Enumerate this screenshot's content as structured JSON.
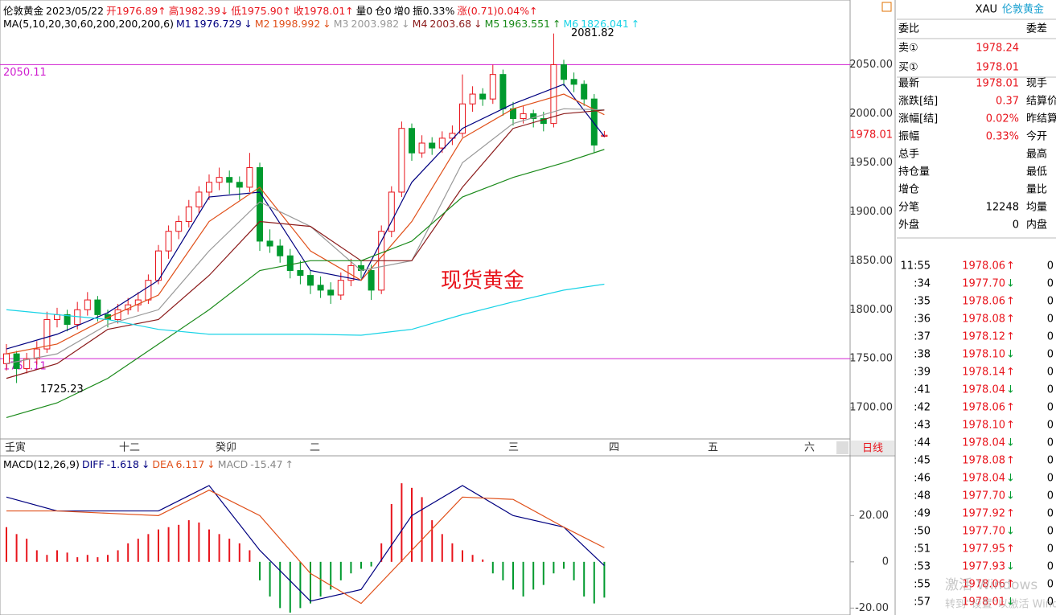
{
  "header": {
    "symbol": "伦敦黄金",
    "date": "2023/05/22",
    "items": [
      "开1976.89↑",
      "高1982.39↓",
      "低1975.90↑",
      "收1978.01↑",
      "量0",
      "仓0",
      "增0",
      "振0.33%",
      "涨(0.71)0.04%↑"
    ]
  },
  "chart_data": [
    {
      "type": "candlestick",
      "ma_title": "MA(5,10,20,30,60,200,200,200,6)",
      "up_color": "#e8141c",
      "down_color": "#009a2e",
      "candles": [
        [
          1745,
          1765,
          1738,
          1755
        ],
        [
          1755,
          1758,
          1725.23,
          1740
        ],
        [
          1740,
          1756,
          1735,
          1750
        ],
        [
          1750,
          1768,
          1744,
          1760
        ],
        [
          1760,
          1798,
          1756,
          1790
        ],
        [
          1790,
          1802,
          1782,
          1795
        ],
        [
          1795,
          1800,
          1778,
          1785
        ],
        [
          1785,
          1808,
          1780,
          1800
        ],
        [
          1800,
          1818,
          1794,
          1810
        ],
        [
          1810,
          1814,
          1788,
          1795
        ],
        [
          1795,
          1800,
          1782,
          1790
        ],
        [
          1790,
          1806,
          1786,
          1800
        ],
        [
          1800,
          1812,
          1795,
          1805
        ],
        [
          1805,
          1818,
          1798,
          1810
        ],
        [
          1810,
          1836,
          1806,
          1830
        ],
        [
          1830,
          1866,
          1826,
          1860
        ],
        [
          1860,
          1886,
          1852,
          1880
        ],
        [
          1880,
          1896,
          1872,
          1890
        ],
        [
          1890,
          1912,
          1884,
          1905
        ],
        [
          1905,
          1926,
          1898,
          1920
        ],
        [
          1920,
          1938,
          1912,
          1930
        ],
        [
          1930,
          1945,
          1922,
          1935
        ],
        [
          1935,
          1942,
          1918,
          1930
        ],
        [
          1930,
          1936,
          1912,
          1925
        ],
        [
          1925,
          1960,
          1920,
          1945
        ],
        [
          1945,
          1950,
          1860,
          1870
        ],
        [
          1870,
          1882,
          1858,
          1865
        ],
        [
          1865,
          1872,
          1848,
          1855
        ],
        [
          1855,
          1862,
          1832,
          1840
        ],
        [
          1840,
          1850,
          1826,
          1835
        ],
        [
          1835,
          1840,
          1816,
          1825
        ],
        [
          1825,
          1834,
          1812,
          1820
        ],
        [
          1820,
          1828,
          1806,
          1815
        ],
        [
          1815,
          1838,
          1810,
          1830
        ],
        [
          1830,
          1852,
          1824,
          1845
        ],
        [
          1845,
          1850,
          1832,
          1840
        ],
        [
          1840,
          1846,
          1810,
          1820
        ],
        [
          1820,
          1886,
          1816,
          1880
        ],
        [
          1880,
          1926,
          1874,
          1920
        ],
        [
          1920,
          1992,
          1915,
          1985
        ],
        [
          1985,
          1990,
          1952,
          1960
        ],
        [
          1960,
          1978,
          1955,
          1970
        ],
        [
          1970,
          1976,
          1958,
          1965
        ],
        [
          1965,
          1982,
          1960,
          1975
        ],
        [
          1975,
          1988,
          1968,
          1980
        ],
        [
          1980,
          2040,
          1976,
          2010
        ],
        [
          2010,
          2028,
          2002,
          2020
        ],
        [
          2020,
          2026,
          2008,
          2015
        ],
        [
          2015,
          2050,
          2010,
          2040
        ],
        [
          2040,
          2045,
          1998,
          2005
        ],
        [
          2005,
          2012,
          1988,
          1995
        ],
        [
          1995,
          2008,
          1990,
          2000
        ],
        [
          2000,
          2004,
          1986,
          1995
        ],
        [
          1995,
          2002,
          1982,
          1990
        ],
        [
          1990,
          2081.82,
          1986,
          2050
        ],
        [
          2050,
          2055,
          2028,
          2035
        ],
        [
          2035,
          2042,
          2022,
          2030
        ],
        [
          2030,
          2034,
          2008,
          2015
        ],
        [
          2015,
          2020,
          1960,
          1968
        ],
        [
          1976.89,
          1982.39,
          1975.9,
          1978.01
        ]
      ],
      "x": [
        0,
        5,
        10,
        15,
        20,
        25,
        30,
        35,
        40,
        45,
        50,
        55,
        59
      ],
      "series": [
        {
          "name": "M1",
          "color": "#000080",
          "trend": "↓",
          "values": [
            1760,
            1775,
            1797,
            1830,
            1915,
            1920,
            1840,
            1830,
            1930,
            1985,
            2010,
            2030,
            1976.729
          ]
        },
        {
          "name": "M2",
          "color": "#e0501a",
          "trend": "↓",
          "values": [
            1755,
            1765,
            1792,
            1815,
            1890,
            1925,
            1860,
            1830,
            1890,
            1975,
            2005,
            2020,
            1998.992
          ]
        },
        {
          "name": "M3",
          "color": "#999999",
          "trend": "↓",
          "values": [
            1745,
            1755,
            1785,
            1800,
            1860,
            1910,
            1885,
            1840,
            1850,
            1950,
            1990,
            2005,
            2003.982
          ]
        },
        {
          "name": "M4",
          "color": "#8b1a1a",
          "trend": "↓",
          "values": [
            1730,
            1745,
            1780,
            1790,
            1835,
            1890,
            1885,
            1850,
            1850,
            1925,
            1985,
            2000,
            2003.68
          ]
        },
        {
          "name": "M5",
          "color": "#1a8a1a",
          "trend": "↑",
          "values": [
            1690,
            1705,
            1730,
            1765,
            1800,
            1840,
            1850,
            1850,
            1870,
            1915,
            1935,
            1950,
            1963.551
          ]
        },
        {
          "name": "M6",
          "color": "#19d3e6",
          "trend": "↑",
          "values": [
            1800,
            1795,
            1790,
            1780,
            1775,
            1775,
            1775,
            1774,
            1780,
            1795,
            1808,
            1820,
            1826.041
          ]
        }
      ],
      "ylim": [
        1669,
        2116
      ],
      "yticks": [
        {
          "value": 2050,
          "label": "2050.00"
        },
        {
          "value": 2000,
          "label": "2000.00"
        },
        {
          "value": 1950,
          "label": "1950.00"
        },
        {
          "value": 1900,
          "label": "1900.00"
        },
        {
          "value": 1850,
          "label": "1850.00"
        },
        {
          "value": 1800,
          "label": "1800.00"
        },
        {
          "value": 1750,
          "label": "1750.00"
        },
        {
          "value": 1700,
          "label": "1700.00"
        }
      ],
      "hlines": [
        2050.11,
        1750.11
      ],
      "hline_color": "#d020d0",
      "annotations": [
        2081.82,
        1725.23
      ],
      "current": 1978.01,
      "label": "现货黄金",
      "time_labels": [
        "壬寅",
        "十二",
        "癸卯",
        "二",
        "三",
        "四",
        "五",
        "六"
      ],
      "period": "日线"
    },
    {
      "type": "macd",
      "title": "MACD(12,26,9)",
      "histogram": {
        "name": "MACD",
        "trend": "↑",
        "values": [
          15,
          12,
          10,
          5,
          3,
          5,
          4,
          2,
          3,
          2,
          3,
          5,
          8,
          10,
          12,
          14,
          15,
          16,
          18,
          17,
          14,
          12,
          10,
          8,
          5,
          -8,
          -15,
          -20,
          -22,
          -20,
          -18,
          -15,
          -12,
          -8,
          -5,
          -3,
          -2,
          8,
          25,
          34,
          32,
          28,
          18,
          12,
          8,
          5,
          3,
          1,
          -5,
          -8,
          -12,
          -15,
          -12,
          -10,
          -5,
          -3,
          -8,
          -15,
          -18,
          -15.47
        ]
      },
      "x": [
        0,
        5,
        10,
        15,
        20,
        25,
        30,
        35,
        40,
        45,
        50,
        55,
        59
      ],
      "series": [
        {
          "name": "DIFF",
          "color": "#000080",
          "trend": "↓",
          "values": [
            28,
            22,
            22,
            22,
            33,
            5,
            -17,
            -12,
            20,
            33,
            20,
            15,
            -1.618
          ]
        },
        {
          "name": "DEA",
          "color": "#e0501a",
          "trend": "↓",
          "values": [
            22,
            22,
            21,
            20,
            31,
            20,
            -5,
            -18,
            5,
            28,
            27,
            15,
            6.117
          ]
        }
      ],
      "ylim": [
        -23,
        45.5
      ],
      "yticks": [
        {
          "value": 20,
          "label": "20.00"
        },
        0,
        {
          "value": -20,
          "label": "-20.00"
        }
      ]
    }
  ],
  "quote_panel": {
    "code": "XAU",
    "name": "伦敦黄金",
    "rows": [
      {
        "label": "委比",
        "label2": "委差"
      },
      {
        "label": "卖①",
        "value": "1978.24"
      },
      {
        "label": "买①",
        "value": "1978.01"
      },
      {
        "label": "最新",
        "value": "1978.01",
        "label2": "现手"
      },
      {
        "label": "涨跌[结]",
        "value": "0.37",
        "label2": "结算价"
      },
      {
        "label": "涨幅[结]",
        "value": "0.02%",
        "label2": "昨结算"
      },
      {
        "label": "振幅",
        "value": "0.33%",
        "label2": "今开"
      },
      {
        "label": "总手",
        "label2": "最高"
      },
      {
        "label": "持仓量",
        "label2": "最低"
      },
      {
        "label": "增仓",
        "label2": "量比"
      },
      {
        "label": "分笔",
        "value": "12248",
        "label2": "均量"
      },
      {
        "label": "外盘",
        "value": "0",
        "label2": "内盘"
      }
    ]
  },
  "ticks": [
    {
      "time": "11:55",
      "price": "1978.06",
      "dir": "↑",
      "vol": "0"
    },
    {
      "time": ":34",
      "price": "1977.70",
      "dir": "↓",
      "vol": "0"
    },
    {
      "time": ":35",
      "price": "1978.06",
      "dir": "↑",
      "vol": "0"
    },
    {
      "time": ":36",
      "price": "1978.08",
      "dir": "↑",
      "vol": "0"
    },
    {
      "time": ":37",
      "price": "1978.12",
      "dir": "↑",
      "vol": "0"
    },
    {
      "time": ":38",
      "price": "1978.10",
      "dir": "↓",
      "vol": "0"
    },
    {
      "time": ":39",
      "price": "1978.14",
      "dir": "↑",
      "vol": "0"
    },
    {
      "time": ":41",
      "price": "1978.04",
      "dir": "↓",
      "vol": "0"
    },
    {
      "time": ":42",
      "price": "1978.06",
      "dir": "↑",
      "vol": "0"
    },
    {
      "time": ":43",
      "price": "1978.10",
      "dir": "↑",
      "vol": "0"
    },
    {
      "time": ":44",
      "price": "1978.04",
      "dir": "↓",
      "vol": "0"
    },
    {
      "time": ":45",
      "price": "1978.08",
      "dir": "↑",
      "vol": "0"
    },
    {
      "time": ":46",
      "price": "1978.04",
      "dir": "↓",
      "vol": "0"
    },
    {
      "time": ":48",
      "price": "1977.70",
      "dir": "↓",
      "vol": "0"
    },
    {
      "time": ":49",
      "price": "1977.92",
      "dir": "↑",
      "vol": "0"
    },
    {
      "time": ":50",
      "price": "1977.70",
      "dir": "↓",
      "vol": "0"
    },
    {
      "time": ":51",
      "price": "1977.95",
      "dir": "↑",
      "vol": "0"
    },
    {
      "time": ":53",
      "price": "1977.93",
      "dir": "↓",
      "vol": "0"
    },
    {
      "time": ":55",
      "price": "1978.06",
      "dir": "↑",
      "vol": "0"
    },
    {
      "time": ":57",
      "price": "1978.01",
      "dir": "↓",
      "vol": "0"
    }
  ],
  "os_watermark": [
    "激活 Windows",
    "转到“设置”以激活 Windows。"
  ]
}
